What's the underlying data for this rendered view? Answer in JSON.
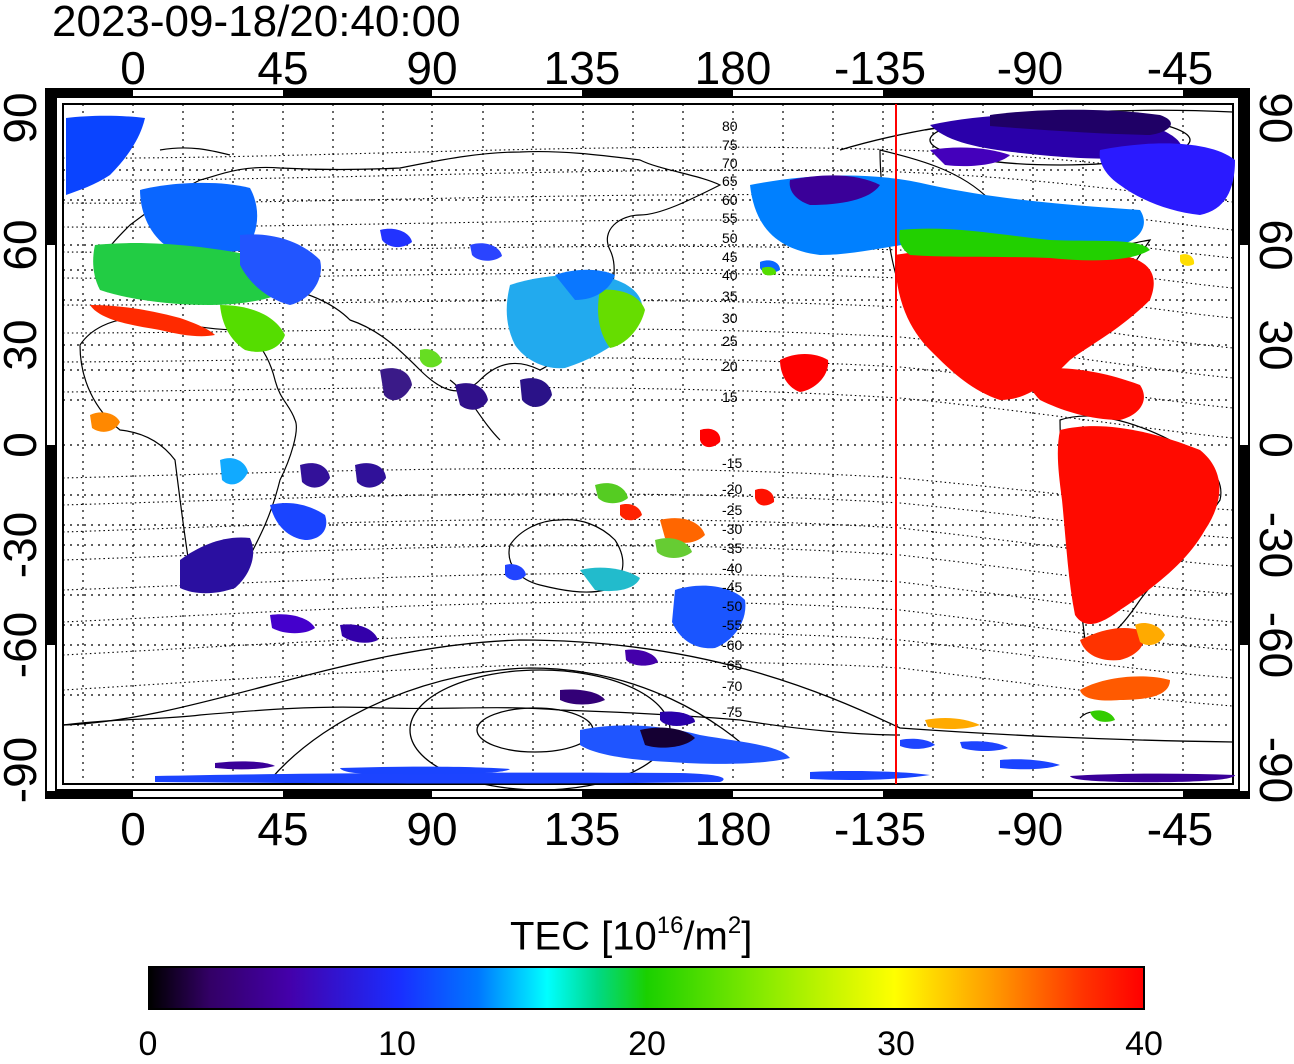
{
  "timestamp": "2023-09-18/20:40:00",
  "axes": {
    "top_lon_labels": [
      "0",
      "45",
      "90",
      "135",
      "180",
      "-135",
      "-90",
      "-45"
    ],
    "bottom_lon_labels": [
      "0",
      "45",
      "90",
      "135",
      "180",
      "-135",
      "-90",
      "-45"
    ],
    "lat_labels": [
      "90",
      "60",
      "30",
      "0",
      "-30",
      "-60",
      "-90"
    ]
  },
  "contour_labels_north": [
    "80",
    "75",
    "70",
    "65",
    "60",
    "55",
    "50",
    "45",
    "40",
    "35",
    "30",
    "25",
    "20",
    "15"
  ],
  "contour_labels_south": [
    "-15",
    "-20",
    "-25",
    "-30",
    "-35",
    "-40",
    "-45",
    "-50",
    "-55",
    "-60",
    "-65",
    "-70",
    "-75"
  ],
  "colorbar": {
    "title_prefix": "TEC  [10",
    "title_exp1": "16",
    "title_mid": "/m",
    "title_exp2": "2",
    "title_suffix": "]",
    "ticks": [
      "0",
      "10",
      "20",
      "30",
      "40"
    ],
    "min": 0,
    "max": 40
  },
  "terminator_longitude": -130,
  "colors": {
    "terminator": "#ff0000",
    "tec_max": "#ff0000",
    "tec_min": "#000000"
  }
}
